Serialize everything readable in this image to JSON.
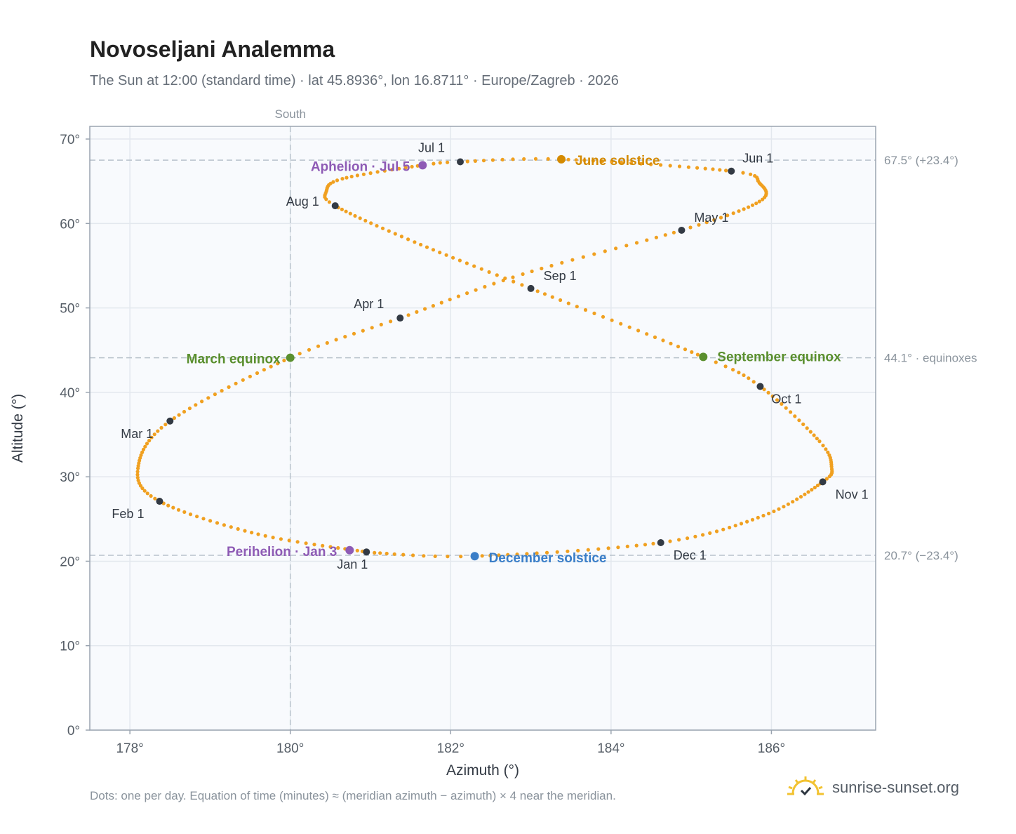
{
  "title": "Novoseljani Analemma",
  "subtitle": "The Sun at 12:00 (standard time) · lat 45.8936°, lon 16.8711° · Europe/Zagreb · 2026",
  "footnote": "Dots: one per day. Equation of time (minutes) ≈ (meridian azimuth − azimuth) × 4 near the meridian.",
  "brand": "sunrise-sunset.org",
  "colors": {
    "curve": "#f0a020",
    "month_dot": "#333a44",
    "equinox": "#5a8f2e",
    "june_solstice": "#d48a00",
    "december_solstice": "#3a7ec8",
    "apsis": "#8e5bb5",
    "ref_line": "#b8c2cc",
    "plot_bg": "#f8fafd"
  },
  "chart_data": {
    "type": "scatter",
    "xlabel": "Azimuth (°)",
    "ylabel": "Altitude (°)",
    "xlim": [
      177.5,
      187.3
    ],
    "ylim": [
      0,
      71.5
    ],
    "x_ticks": [
      178,
      180,
      182,
      184,
      186
    ],
    "x_tick_labels": [
      "178°",
      "180°",
      "182°",
      "184°",
      "186°"
    ],
    "y_ticks": [
      0,
      10,
      20,
      30,
      40,
      50,
      60,
      70
    ],
    "y_tick_labels": [
      "0°",
      "10°",
      "20°",
      "30°",
      "40°",
      "50°",
      "60°",
      "70°"
    ],
    "grid": true,
    "meridian": {
      "azimuth": 180,
      "label": "South"
    },
    "reference_lines": [
      {
        "altitude": 67.5,
        "label": "67.5° (+23.4°)"
      },
      {
        "altitude": 44.1,
        "label": "44.1° · equinoxes"
      },
      {
        "altitude": 20.7,
        "label": "20.7° (−23.4°)"
      }
    ],
    "month_points": [
      {
        "label": "Jan 1",
        "azimuth": 180.95,
        "altitude": 21.1
      },
      {
        "label": "Feb 1",
        "azimuth": 178.37,
        "altitude": 27.1
      },
      {
        "label": "Mar 1",
        "azimuth": 178.5,
        "altitude": 36.6
      },
      {
        "label": "Apr 1",
        "azimuth": 181.37,
        "altitude": 48.8
      },
      {
        "label": "May 1",
        "azimuth": 184.88,
        "altitude": 59.2
      },
      {
        "label": "Jun 1",
        "azimuth": 185.5,
        "altitude": 66.2
      },
      {
        "label": "Jul 1",
        "azimuth": 182.12,
        "altitude": 67.3
      },
      {
        "label": "Aug 1",
        "azimuth": 180.56,
        "altitude": 62.1
      },
      {
        "label": "Sep 1",
        "azimuth": 183.0,
        "altitude": 52.3
      },
      {
        "label": "Oct 1",
        "azimuth": 185.86,
        "altitude": 40.7
      },
      {
        "label": "Nov 1",
        "azimuth": 186.64,
        "altitude": 29.4
      },
      {
        "label": "Dec 1",
        "azimuth": 184.62,
        "altitude": 22.2
      }
    ],
    "events": [
      {
        "label": "March equinox",
        "azimuth": 180.0,
        "altitude": 44.1,
        "kind": "equinox"
      },
      {
        "label": "June solstice",
        "azimuth": 183.38,
        "altitude": 67.6,
        "kind": "june_solstice"
      },
      {
        "label": "September equinox",
        "azimuth": 185.15,
        "altitude": 44.2,
        "kind": "equinox"
      },
      {
        "label": "December solstice",
        "azimuth": 182.3,
        "altitude": 20.6,
        "kind": "december_solstice"
      },
      {
        "label": "Perihelion · Jan 3",
        "azimuth": 180.74,
        "altitude": 21.3,
        "kind": "apsis"
      },
      {
        "label": "Aphelion · Jul 5",
        "azimuth": 181.65,
        "altitude": 66.9,
        "kind": "apsis"
      }
    ],
    "analemma_keypoints": [
      {
        "doy": 1,
        "azimuth": 180.95,
        "altitude": 21.1
      },
      {
        "doy": 16,
        "azimuth": 179.6,
        "altitude": 23.2
      },
      {
        "doy": 32,
        "azimuth": 178.37,
        "altitude": 27.1
      },
      {
        "doy": 44,
        "azimuth": 178.1,
        "altitude": 31.0
      },
      {
        "doy": 60,
        "azimuth": 178.5,
        "altitude": 36.6
      },
      {
        "doy": 79,
        "azimuth": 180.0,
        "altitude": 44.1
      },
      {
        "doy": 91,
        "azimuth": 181.37,
        "altitude": 48.8
      },
      {
        "doy": 105,
        "azimuth": 182.9,
        "altitude": 54.0
      },
      {
        "doy": 121,
        "azimuth": 184.88,
        "altitude": 59.2
      },
      {
        "doy": 134,
        "azimuth": 185.85,
        "altitude": 62.6
      },
      {
        "doy": 145,
        "azimuth": 185.85,
        "altitude": 64.8
      },
      {
        "doy": 152,
        "azimuth": 185.5,
        "altitude": 66.2
      },
      {
        "doy": 172,
        "azimuth": 183.38,
        "altitude": 67.6
      },
      {
        "doy": 182,
        "azimuth": 182.12,
        "altitude": 67.3
      },
      {
        "doy": 186,
        "azimuth": 181.65,
        "altitude": 66.9
      },
      {
        "doy": 199,
        "azimuth": 180.65,
        "altitude": 65.3
      },
      {
        "doy": 207,
        "azimuth": 180.45,
        "altitude": 63.8
      },
      {
        "doy": 213,
        "azimuth": 180.56,
        "altitude": 62.1
      },
      {
        "doy": 228,
        "azimuth": 181.55,
        "altitude": 57.8
      },
      {
        "doy": 244,
        "azimuth": 183.0,
        "altitude": 52.3
      },
      {
        "doy": 266,
        "azimuth": 185.15,
        "altitude": 44.2
      },
      {
        "doy": 274,
        "azimuth": 185.86,
        "altitude": 40.7
      },
      {
        "doy": 289,
        "azimuth": 186.6,
        "altitude": 34.2
      },
      {
        "doy": 298,
        "azimuth": 186.75,
        "altitude": 31.2
      },
      {
        "doy": 305,
        "azimuth": 186.64,
        "altitude": 29.4
      },
      {
        "doy": 320,
        "azimuth": 185.9,
        "altitude": 25.4
      },
      {
        "doy": 335,
        "azimuth": 184.62,
        "altitude": 22.2
      },
      {
        "doy": 355,
        "azimuth": 182.3,
        "altitude": 20.6
      },
      {
        "doy": 365,
        "azimuth": 181.05,
        "altitude": 21.0
      }
    ]
  }
}
